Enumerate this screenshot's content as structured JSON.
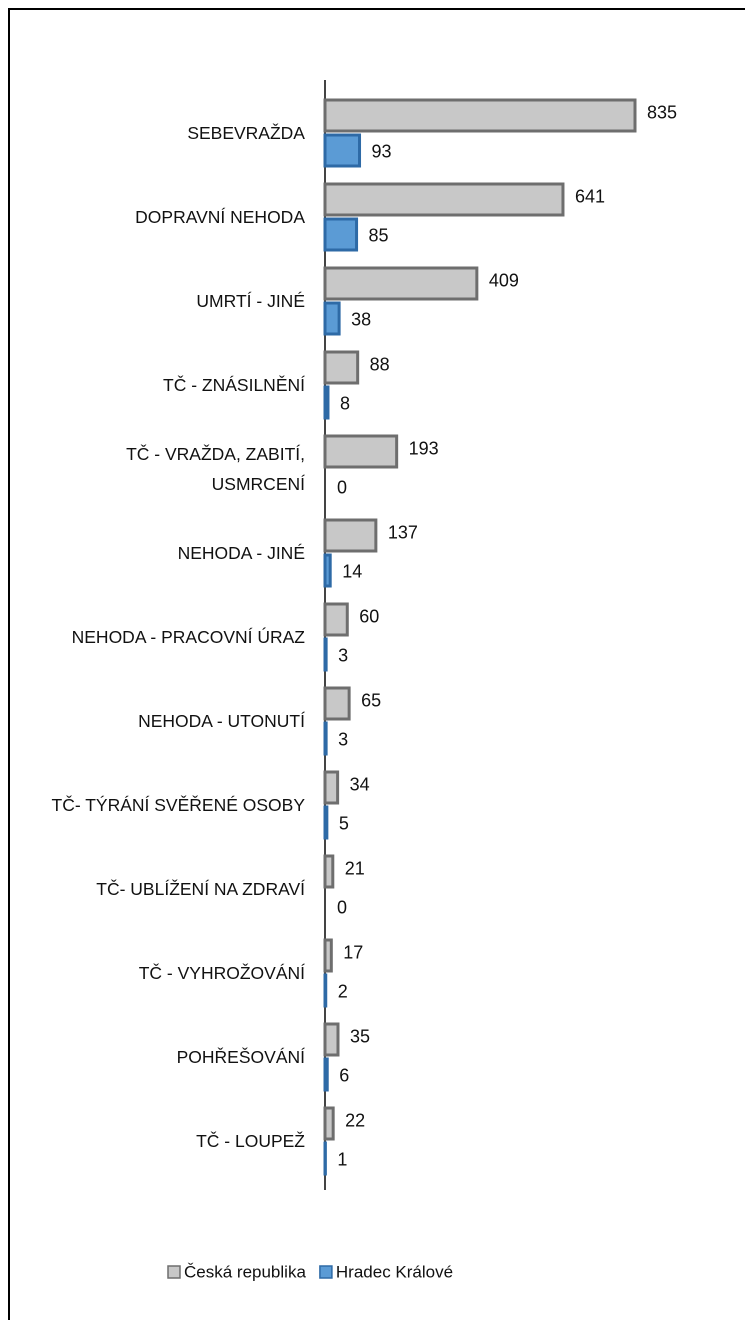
{
  "chart_data": {
    "type": "bar",
    "orientation": "horizontal",
    "categories": [
      "SEBEVRAŽDA",
      "DOPRAVNÍ NEHODA",
      "UMRTÍ - JINÉ",
      "TČ - ZNÁSILNĚNÍ",
      "TČ - VRAŽDA, ZABITÍ,\nUSMRCENÍ",
      "NEHODA - JINÉ",
      "NEHODA - PRACOVNÍ ÚRAZ",
      "NEHODA - UTONUTÍ",
      "TČ- TÝRÁNÍ SVĚŘENÉ OSOBY",
      "TČ- UBLÍŽENÍ NA ZDRAVÍ",
      "TČ - VYHROŽOVÁNÍ",
      "POHŘEŠOVÁNÍ",
      "TČ - LOUPEŽ"
    ],
    "series": [
      {
        "name": "Česká republika",
        "color": "#c8c8c8",
        "values": [
          835,
          641,
          409,
          88,
          193,
          137,
          60,
          65,
          34,
          21,
          17,
          35,
          22
        ]
      },
      {
        "name": "Hradec Králové",
        "color": "#5b9bd5",
        "values": [
          93,
          85,
          38,
          8,
          0,
          14,
          3,
          3,
          5,
          0,
          2,
          6,
          1
        ]
      }
    ],
    "legend": "bottom"
  }
}
